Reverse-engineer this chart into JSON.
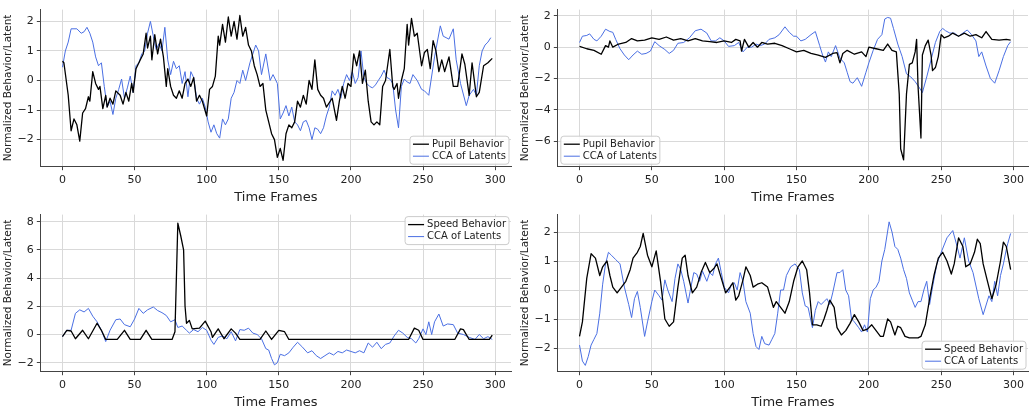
{
  "chart_data": [
    {
      "type": "line",
      "xlabel": "Time Frames",
      "ylabel": "Normalized Behavior/Latent",
      "xlim": [
        -15,
        311
      ],
      "ylim": [
        -2.9,
        2.4
      ],
      "xticks": [
        0,
        50,
        100,
        150,
        200,
        250,
        300
      ],
      "yticks": [
        {
          "value": -2,
          "label": "−2"
        },
        {
          "value": -1,
          "label": "−1"
        },
        0,
        1,
        2
      ],
      "grid": true,
      "legend": "bottom right",
      "series": [
        {
          "name": "Pupil Behavior",
          "color": "#000000",
          "x": [
            0,
            1,
            4,
            6,
            8,
            10,
            12,
            14,
            16,
            18,
            19,
            21,
            23,
            25,
            26,
            28,
            30,
            31,
            33,
            35,
            37,
            40,
            42,
            44,
            46,
            48,
            49,
            51,
            54,
            56,
            58,
            59,
            61,
            62,
            64,
            66,
            68,
            70,
            72,
            73,
            75,
            77,
            79,
            81,
            83,
            85,
            87,
            89,
            91,
            93,
            95,
            97,
            100,
            102,
            104,
            106,
            108,
            109,
            111,
            113,
            115,
            117,
            119,
            121,
            123,
            125,
            127,
            129,
            131,
            133,
            135,
            137,
            139,
            141,
            143,
            145,
            147,
            149,
            151,
            153,
            155,
            157,
            159,
            161,
            163,
            165,
            167,
            169,
            171,
            173,
            175,
            177,
            179,
            181,
            183,
            187,
            190,
            192,
            194,
            196,
            198,
            200,
            202,
            204,
            206,
            208,
            210,
            212,
            214,
            216,
            218,
            220,
            222,
            224,
            227,
            229,
            230,
            232,
            233,
            235,
            237,
            239,
            240,
            242,
            244,
            246,
            249,
            251,
            253,
            255,
            257,
            259,
            261,
            263,
            265,
            268,
            271,
            274,
            277,
            279,
            282,
            284,
            287,
            289,
            292,
            295,
            298
          ],
          "values": [
            0.65,
            0.6,
            -0.5,
            -1.7,
            -1.3,
            -1.5,
            -2.05,
            -1.1,
            -0.95,
            -0.55,
            -0.7,
            0.3,
            -0.1,
            -0.3,
            -0.2,
            -0.95,
            -0.5,
            -0.9,
            -0.6,
            -0.8,
            -0.35,
            -0.5,
            -0.8,
            -0.4,
            -0.7,
            -0.1,
            -0.4,
            0.4,
            0.7,
            0.9,
            1.6,
            1.1,
            1.5,
            0.7,
            1.55,
            0.9,
            1.4,
            0.8,
            -0.2,
            0.4,
            -0.2,
            -0.5,
            -0.6,
            -0.35,
            -0.6,
            -0.1,
            0.05,
            -0.2,
            0.1,
            -0.7,
            -0.5,
            -0.7,
            -1.2,
            -0.3,
            -0.2,
            0.15,
            1.5,
            1.2,
            1.9,
            1.3,
            2.15,
            1.5,
            2.0,
            1.4,
            2.2,
            1.5,
            1.8,
            1.2,
            1.0,
            0.5,
            0.2,
            -0.2,
            -0.1,
            -1.0,
            -1.4,
            -1.8,
            -2.0,
            -2.6,
            -2.3,
            -2.7,
            -1.8,
            -1.5,
            -1.6,
            -1.4,
            -0.7,
            -0.9,
            -0.5,
            -0.8,
            0.0,
            -0.3,
            0.7,
            -0.3,
            -0.5,
            -0.6,
            -0.9,
            -0.6,
            -1.35,
            -0.7,
            -0.2,
            -0.6,
            -0.1,
            -0.2,
            0.9,
            0.5,
            1.0,
            -0.1,
            0.35,
            -0.7,
            -1.4,
            -1.5,
            -1.4,
            -1.5,
            -0.2,
            0.0,
            1.05,
            -0.2,
            -0.3,
            -0.1,
            -0.6,
            0.0,
            0.4,
            1.9,
            1.2,
            2.1,
            1.5,
            1.6,
            0.5,
            0.95,
            1.05,
            0.4,
            1.35,
            1.0,
            0.3,
            0.7,
            0.3,
            0.8,
            -0.2,
            -0.2,
            0.9,
            0.55,
            -0.5,
            0.6,
            -0.55,
            -0.4,
            0.5,
            0.6,
            0.75
          ]
        },
        {
          "name": "CCA of Latents",
          "color": "#4a6fe3",
          "x": [
            0,
            2,
            4,
            6,
            10,
            13,
            15,
            17,
            19,
            21,
            23,
            25,
            27,
            29,
            31,
            33,
            35,
            37,
            39,
            41,
            43,
            45,
            47,
            49,
            51,
            53,
            55,
            57,
            59,
            61,
            63,
            65,
            67,
            69,
            71,
            73,
            75,
            77,
            79,
            81,
            83,
            85,
            87,
            89,
            91,
            93,
            95,
            97,
            99,
            101,
            103,
            105,
            107,
            109,
            111,
            113,
            115,
            117,
            119,
            121,
            123,
            125,
            127,
            130,
            134,
            136,
            138,
            141,
            144,
            146,
            149,
            151,
            153,
            155,
            157,
            159,
            161,
            163,
            165,
            167,
            169,
            171,
            173,
            175,
            177,
            179,
            181,
            183,
            185,
            187,
            189,
            191,
            193,
            195,
            197,
            199,
            201,
            203,
            205,
            207,
            209,
            211,
            213,
            215,
            217,
            219,
            221,
            223,
            225,
            227,
            229,
            231,
            233,
            235,
            237,
            239,
            241,
            243,
            246,
            249,
            251,
            254,
            258,
            262,
            264,
            266,
            268,
            271,
            273,
            276,
            280,
            282,
            285,
            287,
            289,
            291,
            293,
            295,
            297
          ],
          "values": [
            0.45,
            1.0,
            1.3,
            1.75,
            1.75,
            1.6,
            1.65,
            1.8,
            1.6,
            1.3,
            0.8,
            0.5,
            0.6,
            -0.2,
            -0.9,
            -0.7,
            -1.15,
            -0.6,
            -0.3,
            0.05,
            -0.6,
            -0.25,
            0.15,
            -0.4,
            0.5,
            0.6,
            0.9,
            1.0,
            1.6,
            2.0,
            1.5,
            1.05,
            1.25,
            1.0,
            1.8,
            0.7,
            0.2,
            0.65,
            0.4,
            0.5,
            -0.1,
            0.3,
            -0.55,
            0.3,
            0.1,
            -0.6,
            -0.8,
            -0.6,
            -0.9,
            -1.4,
            -1.75,
            -1.5,
            -1.8,
            -1.95,
            -1.3,
            -1.5,
            -1.3,
            -0.6,
            -0.4,
            0.0,
            -0.1,
            0.35,
            0.0,
            0.6,
            1.2,
            1.0,
            0.2,
            0.9,
            0.0,
            0.2,
            -0.1,
            -1.3,
            -1.1,
            -0.85,
            -1.2,
            -0.9,
            -1.4,
            -1.5,
            -1.7,
            -1.4,
            -1.35,
            -1.6,
            -2.0,
            -1.6,
            -1.65,
            -1.8,
            -1.6,
            -1.2,
            -0.9,
            -0.35,
            -0.5,
            -0.3,
            -0.6,
            -0.1,
            0.2,
            0.0,
            0.3,
            -0.1,
            0.1,
            1.0,
            0.1,
            -0.1,
            -0.2,
            -0.25,
            -0.15,
            0.0,
            0.15,
            0.35,
            0.1,
            0.05,
            -0.1,
            -1.0,
            -1.6,
            -0.2,
            0.05,
            -0.05,
            -0.1,
            0.2,
            0.0,
            -0.3,
            -0.35,
            -0.5,
            0.8,
            1.85,
            1.5,
            1.45,
            1.4,
            1.75,
            0.7,
            -0.1,
            -0.85,
            -0.5,
            -0.3,
            -0.5,
            0.5,
            1.0,
            1.2,
            1.3,
            1.45
          ]
        }
      ]
    },
    {
      "type": "line",
      "xlabel": "Time Frames",
      "ylabel": "Normalized Behavior/Latent",
      "xlim": [
        -15,
        310
      ],
      "ylim": [
        -7.6,
        2.4
      ],
      "xticks": [
        0,
        50,
        100,
        150,
        200,
        250,
        300
      ],
      "yticks": [
        {
          "value": -6,
          "label": "−6"
        },
        {
          "value": -4,
          "label": "−4"
        },
        {
          "value": -2,
          "label": "−2"
        },
        0,
        2
      ],
      "grid": true,
      "legend": "bottom left",
      "series": [
        {
          "name": "Pupil Behavior",
          "color": "#000000",
          "x": [
            0,
            5,
            10,
            15,
            18,
            20,
            21,
            23,
            27,
            32,
            36,
            40,
            45,
            50,
            55,
            60,
            65,
            70,
            75,
            80,
            85,
            90,
            95,
            100,
            105,
            108,
            111,
            112,
            114,
            117,
            120,
            123,
            126,
            130,
            135,
            140,
            145,
            150,
            155,
            160,
            165,
            170,
            175,
            178,
            180,
            182,
            185,
            190,
            195,
            198,
            200,
            205,
            210,
            213,
            216,
            219,
            221,
            222,
            224,
            226,
            228,
            230,
            232,
            233,
            234,
            236,
            237,
            239,
            241,
            243,
            244,
            246,
            248,
            250,
            252,
            255,
            258,
            262,
            266,
            270,
            274,
            278,
            281,
            285,
            290,
            295,
            298
          ],
          "values": [
            0.05,
            -0.1,
            -0.2,
            -0.45,
            0.1,
            0.0,
            0.4,
            0.0,
            0.2,
            0.3,
            0.55,
            0.4,
            0.45,
            0.6,
            0.5,
            0.65,
            0.45,
            0.55,
            0.4,
            0.55,
            0.4,
            0.35,
            0.3,
            0.4,
            0.3,
            0.5,
            0.4,
            -0.25,
            0.5,
            0.0,
            0.3,
            0.0,
            0.3,
            0.2,
            0.25,
            0.1,
            -0.1,
            -0.3,
            -0.2,
            -0.4,
            -0.5,
            -0.65,
            -0.4,
            -0.35,
            -1.0,
            -0.4,
            -0.2,
            -0.45,
            -0.3,
            -0.6,
            0.0,
            -0.1,
            -0.2,
            0.2,
            -0.2,
            -0.3,
            -3.0,
            -6.5,
            -7.2,
            -3.0,
            -1.1,
            -1.0,
            -0.3,
            0.5,
            -2.5,
            -5.8,
            -0.5,
            0.1,
            0.45,
            -0.5,
            -1.5,
            -1.3,
            -0.6,
            0.8,
            0.6,
            0.7,
            0.9,
            0.7,
            0.9,
            0.7,
            0.8,
            0.6,
            1.0,
            0.5,
            0.45,
            0.5,
            0.45
          ]
        },
        {
          "name": "CCA of Latents",
          "color": "#4a6fe3",
          "x": [
            0,
            2,
            5,
            7,
            10,
            12,
            15,
            18,
            21,
            23,
            25,
            28,
            31,
            34,
            37,
            40,
            43,
            46,
            49,
            52,
            55,
            59,
            62,
            65,
            68,
            72,
            76,
            80,
            84,
            88,
            91,
            94,
            97,
            100,
            103,
            107,
            110,
            113,
            116,
            119,
            122,
            125,
            128,
            131,
            135,
            138,
            142,
            145,
            148,
            150,
            153,
            156,
            160,
            163,
            166,
            168,
            170,
            172,
            174,
            177,
            180,
            183,
            185,
            187,
            189,
            192,
            195,
            198,
            200,
            203,
            206,
            209,
            211,
            213,
            215,
            217,
            220,
            223,
            226,
            229,
            232,
            235,
            237,
            240,
            243,
            246,
            249,
            251,
            253,
            256,
            259,
            262,
            265,
            268,
            271,
            274,
            276,
            278,
            281,
            284,
            287,
            290,
            293,
            296,
            298
          ],
          "values": [
            0.3,
            0.7,
            0.75,
            0.85,
            0.5,
            0.4,
            0.7,
            1.15,
            1.0,
            0.95,
            0.5,
            -0.1,
            -0.5,
            -0.8,
            -0.5,
            -0.25,
            -0.45,
            -0.4,
            -0.25,
            0.35,
            0.1,
            -0.15,
            -0.4,
            -0.2,
            0.25,
            0.3,
            0.6,
            1.05,
            1.15,
            0.9,
            0.4,
            0.4,
            0.6,
            0.4,
            0.05,
            0.1,
            0.3,
            -0.3,
            0.0,
            0.0,
            0.2,
            0.1,
            0.2,
            0.5,
            0.6,
            0.8,
            1.3,
            0.95,
            0.7,
            0.7,
            0.4,
            0.5,
            0.8,
            1.0,
            0.1,
            -0.5,
            -0.95,
            -0.3,
            -0.6,
            0.1,
            -0.7,
            -1.0,
            -1.6,
            -2.2,
            -2.3,
            -1.95,
            -2.5,
            -1.6,
            -1.0,
            -0.2,
            0.5,
            0.8,
            1.8,
            1.9,
            1.85,
            1.2,
            0.2,
            -0.6,
            -1.7,
            -1.9,
            -2.2,
            -2.6,
            -2.9,
            -1.9,
            -0.8,
            0.3,
            1.0,
            1.2,
            1.05,
            0.9,
            0.9,
            0.7,
            0.9,
            1.1,
            0.8,
            0.4,
            -0.6,
            -0.3,
            -1.2,
            -2.0,
            -2.3,
            -1.5,
            -0.6,
            0.1,
            0.35
          ]
        }
      ]
    },
    {
      "type": "line",
      "xlabel": "Time Frames",
      "ylabel": "Normalized Behavior/Latent",
      "xlim": [
        -15,
        311
      ],
      "ylim": [
        -2.6,
        8.5
      ],
      "xticks": [
        0,
        50,
        100,
        150,
        200,
        250,
        300
      ],
      "yticks": [
        {
          "value": -2,
          "label": "−2"
        },
        0,
        2,
        4,
        6,
        8
      ],
      "grid": true,
      "legend": "top right",
      "series": [
        {
          "name": "Speed Behavior",
          "color": "#000000",
          "x": [
            0,
            3,
            6,
            9,
            14,
            18,
            24,
            27,
            30,
            38,
            43,
            47,
            54,
            58,
            62,
            76,
            78,
            80,
            82,
            84,
            85,
            86,
            88,
            90,
            95,
            99,
            103,
            104,
            108,
            112,
            117,
            120,
            123,
            137,
            141,
            145,
            150,
            154,
            157,
            240,
            244,
            247,
            250,
            272,
            276,
            278,
            282,
            296,
            298
          ],
          "values": [
            -0.15,
            0.3,
            0.25,
            -0.3,
            0.3,
            -0.3,
            0.8,
            0.3,
            -0.35,
            -0.35,
            0.3,
            -0.35,
            -0.35,
            0.3,
            -0.35,
            -0.35,
            0.2,
            7.9,
            7.0,
            6.0,
            2.0,
            0.8,
            1.0,
            0.4,
            0.45,
            0.95,
            0.2,
            -0.2,
            0.4,
            -0.3,
            0.4,
            0.1,
            -0.35,
            -0.35,
            0.25,
            -0.35,
            0.3,
            0.2,
            -0.35,
            -0.35,
            0.45,
            0.3,
            -0.35,
            -0.35,
            0.4,
            0.35,
            -0.35,
            -0.35,
            -0.05
          ]
        },
        {
          "name": "CCA of Latents",
          "color": "#4a6fe3",
          "x": [
            0,
            3,
            6,
            9,
            12,
            15,
            18,
            21,
            24,
            27,
            30,
            33,
            37,
            40,
            43,
            47,
            50,
            53,
            56,
            59,
            63,
            66,
            69,
            72,
            75,
            78,
            80,
            83,
            86,
            88,
            91,
            94,
            97,
            100,
            103,
            105,
            108,
            111,
            114,
            117,
            120,
            123,
            126,
            129,
            132,
            135,
            138,
            141,
            143,
            145,
            147,
            149,
            151,
            154,
            157,
            160,
            163,
            166,
            170,
            173,
            176,
            179,
            182,
            185,
            188,
            191,
            194,
            197,
            200,
            203,
            206,
            209,
            212,
            215,
            218,
            221,
            224,
            227,
            230,
            233,
            236,
            239,
            242,
            245,
            247,
            250,
            252,
            254,
            256,
            258,
            261,
            264,
            267,
            271,
            274,
            278,
            282,
            286,
            289,
            292,
            295,
            298
          ],
          "values": [
            -0.15,
            0.3,
            0.3,
            1.5,
            1.75,
            1.6,
            1.85,
            1.3,
            0.9,
            0.3,
            -0.5,
            0.3,
            1.05,
            1.1,
            0.7,
            0.55,
            1.1,
            1.85,
            1.5,
            1.75,
            1.95,
            1.7,
            1.55,
            1.35,
            0.9,
            1.05,
            0.5,
            0.6,
            0.3,
            0.1,
            0.35,
            0.2,
            0.5,
            0.3,
            -0.4,
            -0.7,
            -0.2,
            -0.1,
            -0.3,
            0.2,
            -0.45,
            0.35,
            0.3,
            0.45,
            0.1,
            0.0,
            -0.3,
            -1.0,
            -1.1,
            -1.7,
            -2.15,
            -2.0,
            -1.4,
            -1.5,
            -1.3,
            -0.9,
            -0.55,
            -0.85,
            -1.3,
            -1.15,
            -1.5,
            -1.7,
            -1.5,
            -1.3,
            -1.45,
            -1.2,
            -1.3,
            -1.1,
            -1.2,
            -1.3,
            -1.15,
            -1.3,
            -0.6,
            -0.9,
            -0.55,
            -1.0,
            -0.7,
            -0.6,
            -0.1,
            0.3,
            0.1,
            -0.2,
            -0.3,
            -0.6,
            -0.3,
            0.4,
            0.0,
            0.9,
            0.0,
            0.9,
            1.45,
            0.6,
            0.75,
            0.7,
            0.1,
            0.0,
            -0.2,
            -0.35,
            0.0,
            -0.3,
            -0.15,
            -0.35
          ]
        }
      ]
    },
    {
      "type": "line",
      "xlabel": "Time Frames",
      "ylabel": "Normalized Behavior/Latent",
      "xlim": [
        -15,
        310
      ],
      "ylim": [
        -2.8,
        2.6
      ],
      "xticks": [
        0,
        50,
        100,
        150,
        200,
        250,
        300
      ],
      "yticks": [
        {
          "value": -2,
          "label": "−2"
        },
        {
          "value": -1,
          "label": "−1"
        },
        0,
        1,
        2
      ],
      "grid": true,
      "legend": "bottom right",
      "series": [
        {
          "name": "Speed Behavior",
          "color": "#000000",
          "x": [
            0,
            2,
            5,
            8,
            11,
            14,
            16,
            19,
            21,
            23,
            26,
            29,
            32,
            35,
            37,
            40,
            42,
            44,
            47,
            50,
            53,
            56,
            59,
            62,
            65,
            68,
            71,
            73,
            75,
            78,
            81,
            84,
            87,
            90,
            93,
            95,
            98,
            101,
            104,
            106,
            108,
            110,
            113,
            115,
            118,
            120,
            123,
            126,
            130,
            134,
            136,
            139,
            142,
            145,
            148,
            151,
            154,
            157,
            159,
            161,
            164,
            167,
            169,
            171,
            173,
            176,
            178,
            181,
            184,
            187,
            190,
            193,
            196,
            199,
            202,
            205,
            208,
            210,
            213,
            215,
            218,
            220,
            222,
            225,
            228,
            234,
            236,
            239,
            242,
            245,
            248,
            251,
            254,
            257,
            259,
            262,
            265,
            267,
            270,
            273,
            275,
            277,
            279,
            282,
            285,
            288,
            291,
            293,
            295,
            298
          ],
          "values": [
            -1.6,
            -1.1,
            0.4,
            1.25,
            1.1,
            0.5,
            0.8,
            1.0,
            0.5,
            0.1,
            -0.1,
            0.1,
            0.3,
            0.7,
            1.1,
            1.3,
            1.5,
            1.95,
            1.2,
            0.8,
            1.35,
            0.3,
            -1.0,
            -1.25,
            -1.1,
            0.1,
            1.1,
            1.2,
            0.5,
            -0.1,
            0.1,
            0.6,
            0.95,
            0.6,
            0.75,
            0.9,
            0.4,
            -0.1,
            0.1,
            0.25,
            -0.35,
            -0.2,
            0.35,
            0.8,
            0.5,
            0.1,
            0.2,
            0.25,
            0.1,
            -0.6,
            -0.4,
            -0.6,
            -0.8,
            -0.4,
            0.3,
            0.8,
            1.0,
            0.7,
            -0.1,
            -1.2,
            -1.2,
            -1.25,
            -1.0,
            -0.7,
            -0.35,
            -0.6,
            -1.3,
            -1.55,
            -1.4,
            -1.15,
            -0.85,
            -1.1,
            -1.4,
            -1.35,
            -1.2,
            -1.4,
            -1.6,
            -1.6,
            -1.0,
            -1.1,
            -1.55,
            -1.25,
            -1.3,
            -1.6,
            -1.65,
            -1.65,
            -1.6,
            -1.2,
            -0.3,
            0.5,
            1.1,
            1.3,
            1.0,
            0.55,
            0.9,
            1.8,
            1.5,
            0.8,
            0.9,
            1.3,
            1.75,
            1.6,
            0.9,
            0.3,
            -0.3,
            0.2,
            1.0,
            1.65,
            1.5,
            0.7
          ]
        },
        {
          "name": "CCA of Latents",
          "color": "#4a6fe3",
          "x": [
            0,
            2,
            4,
            6,
            8,
            10,
            12,
            14,
            16,
            18,
            20,
            22,
            25,
            28,
            31,
            34,
            36,
            38,
            40,
            42,
            45,
            47,
            50,
            52,
            55,
            57,
            59,
            61,
            64,
            66,
            68,
            70,
            72,
            75,
            77,
            79,
            81,
            83,
            85,
            88,
            90,
            92,
            94,
            96,
            98,
            100,
            103,
            105,
            107,
            109,
            111,
            113,
            115,
            118,
            120,
            122,
            124,
            126,
            128,
            131,
            133,
            135,
            137,
            139,
            141,
            143,
            146,
            149,
            152,
            154,
            156,
            158,
            161,
            163,
            165,
            167,
            169,
            171,
            173,
            175,
            178,
            180,
            182,
            184,
            186,
            188,
            190,
            193,
            195,
            197,
            199,
            201,
            203,
            205,
            207,
            209,
            211,
            214,
            216,
            218,
            220,
            222,
            224,
            226,
            228,
            230,
            232,
            234,
            236,
            238,
            240,
            242,
            244,
            247,
            250,
            254,
            258,
            261,
            263,
            266,
            269,
            272,
            276,
            279,
            283,
            285,
            287,
            289,
            291,
            293,
            295,
            296,
            298
          ],
          "values": [
            -1.9,
            -2.45,
            -2.6,
            -2.3,
            -1.9,
            -1.7,
            -1.5,
            -0.8,
            0.2,
            0.9,
            1.3,
            1.2,
            1.05,
            0.9,
            0.1,
            -0.5,
            -0.95,
            -0.3,
            -0.05,
            -0.6,
            -1.6,
            -1.1,
            -0.4,
            0.0,
            -0.2,
            -0.35,
            0.35,
            0.0,
            -0.4,
            0.4,
            0.9,
            0.7,
            0.3,
            -0.45,
            0.1,
            0.6,
            0.55,
            0.3,
            0.65,
            0.3,
            0.6,
            0.5,
            0.9,
            1.1,
            0.6,
            0.1,
            -0.1,
            0.2,
            0.25,
            0.0,
            0.6,
            0.3,
            -0.4,
            -0.8,
            -1.5,
            -1.95,
            -2.05,
            -1.6,
            -1.85,
            -1.9,
            -1.7,
            -1.5,
            -0.8,
            0.0,
            0.0,
            0.5,
            0.8,
            0.9,
            0.7,
            -0.1,
            -0.55,
            -0.6,
            -1.3,
            -0.7,
            -0.4,
            -0.5,
            -0.4,
            -0.3,
            -0.5,
            -0.1,
            0.6,
            0.6,
            0.7,
            0.0,
            -0.2,
            -1.0,
            -1.1,
            -1.3,
            -1.45,
            -1.2,
            -1.45,
            -0.3,
            0.0,
            0.1,
            0.3,
            1.0,
            1.4,
            2.35,
            2.0,
            1.5,
            1.4,
            1.1,
            0.7,
            0.4,
            -0.1,
            -0.35,
            -0.6,
            -0.4,
            -0.4,
            0.0,
            0.3,
            -0.5,
            0.1,
            0.9,
            1.3,
            1.8,
            2.05,
            1.5,
            1.1,
            1.8,
            1.0,
            0.6,
            -0.3,
            -0.85,
            -0.2,
            -0.4,
            0.3,
            -0.2,
            0.5,
            0.9,
            1.4,
            1.6,
            1.95
          ]
        }
      ]
    }
  ]
}
